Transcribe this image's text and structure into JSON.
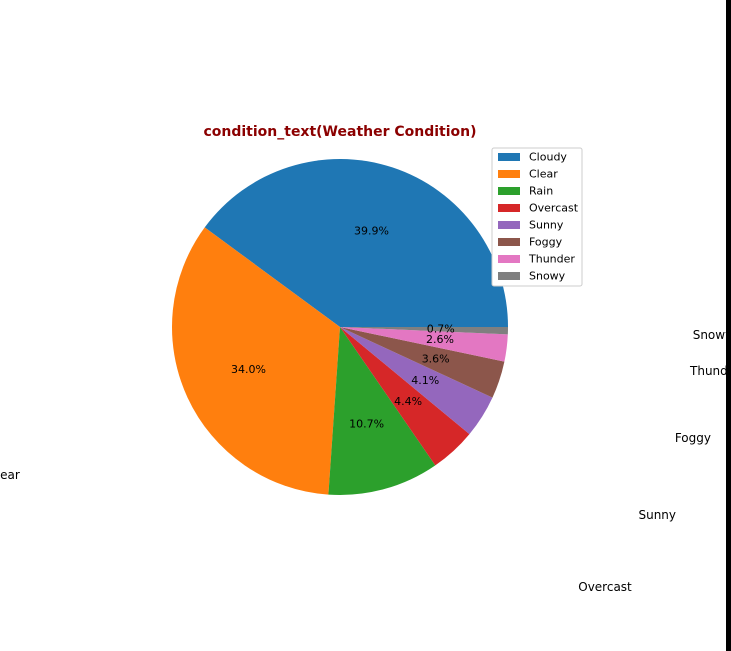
{
  "chart_data": {
    "type": "pie",
    "title": "condition_text(Weather Condition)",
    "title_color": "#8b0000",
    "categories": [
      "Cloudy",
      "Clear",
      "Rain",
      "Overcast",
      "Sunny",
      "Foggy",
      "Thunder",
      "Snowy"
    ],
    "values": [
      39.9,
      34.0,
      10.7,
      4.4,
      4.1,
      3.6,
      2.6,
      0.7
    ],
    "value_labels": [
      "39.9%",
      "34.0%",
      "10.7%",
      "4.4%",
      "4.1%",
      "3.6%",
      "2.6%",
      "0.7%"
    ],
    "colors": [
      "#1f77b4",
      "#ff7f0e",
      "#2ca02c",
      "#d62728",
      "#9467bd",
      "#8c564b",
      "#e377c2",
      "#7f7f7f"
    ],
    "start_angle_deg": 0,
    "direction": "counterclockwise",
    "legend_position": "top-right"
  }
}
